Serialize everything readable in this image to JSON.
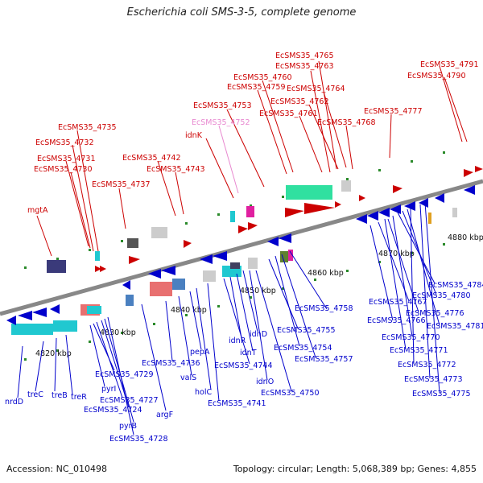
{
  "title": "Escherichia coli SMS-3-5, complete genome",
  "footer": {
    "accession": "Accession: NC_010498",
    "topology": "Topology: circular; Length: 5,068,389 bp; Genes: 4,855"
  },
  "colors": {
    "forward_label": "#cc0000",
    "reverse_label": "#0000cc",
    "forward_feature": "#ff1a1a",
    "reverse_feature": "#1a1aee",
    "highlight_label": "#e888d0",
    "backbone": "#888888"
  },
  "scale_labels": [
    "4820 kbp",
    "4830 kbp",
    "4840 kbp",
    "4850 kbp",
    "4860 kbp",
    "4870 kbp",
    "4880 kbp"
  ],
  "forward_labels": [
    "EcSMS35_4765",
    "EcSMS35_4763",
    "EcSMS35_4791",
    "EcSMS35_4790",
    "EcSMS35_4760",
    "EcSMS35_4759",
    "EcSMS35_4764",
    "EcSMS35_4762",
    "EcSMS35_4753",
    "EcSMS35_4761",
    "EcSMS35_4777",
    "EcSMS35_4768",
    "EcSMS35_4752",
    "EcSMS35_4735",
    "idnK",
    "EcSMS35_4732",
    "EcSMS35_4731",
    "EcSMS35_4742",
    "EcSMS35_4730",
    "EcSMS35_4743",
    "EcSMS35_4737",
    "mgtA"
  ],
  "reverse_labels": [
    "EcSMS35_4784",
    "EcSMS35_4780",
    "EcSMS35_4758",
    "EcSMS35_4767",
    "EcSMS35_4776",
    "EcSMS35_4766",
    "EcSMS35_4781",
    "EcSMS35_4755",
    "EcSMS35_4770",
    "EcSMS35_4754",
    "EcSMS35_4771",
    "EcSMS35_4757",
    "EcSMS35_4772",
    "EcSMS35_4773",
    "EcSMS35_4775",
    "EcSMS35_4750",
    "idnO",
    "EcSMS35_4741",
    "EcSMS35_4744",
    "idnT",
    "idnD",
    "idnR",
    "pepA",
    "valS",
    "holC",
    "EcSMS35_4736",
    "argF",
    "EcSMS35_4728",
    "pyrB",
    "EcSMS35_4724",
    "EcSMS35_4727",
    "pyrI",
    "EcSMS35_4729",
    "nrdD",
    "treC",
    "treB",
    "treR"
  ]
}
